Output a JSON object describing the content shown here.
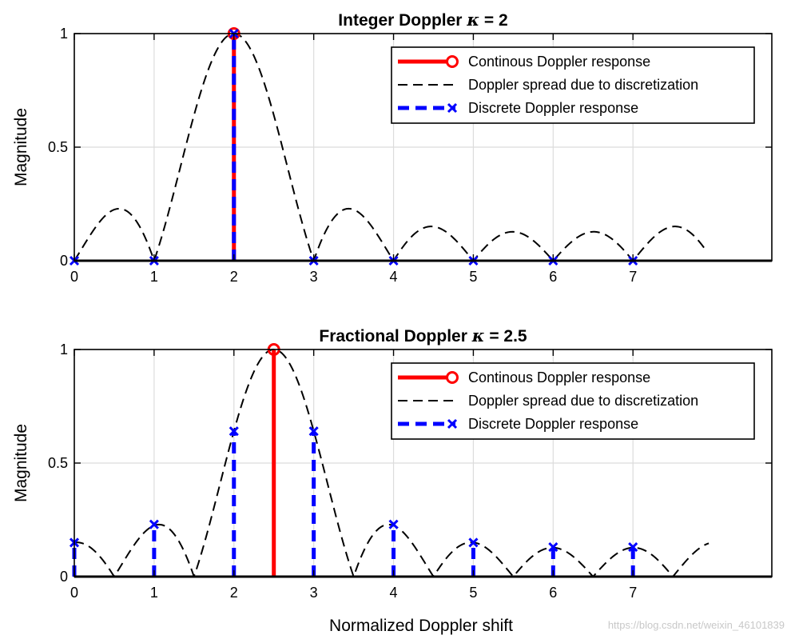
{
  "figure": {
    "xlabel": "Normalized Doppler shift",
    "watermark": "https://blog.csdn.net/weixin_46101839"
  },
  "colors": {
    "continuous": "#ff0000",
    "spread": "#000000",
    "discrete": "#0000ff",
    "grid": "#dcdcdc"
  },
  "chart_data": [
    {
      "type": "line",
      "title": "Integer Doppler κ = 2",
      "title_prefix": "Integer Doppler ",
      "title_symbol": "κ",
      "title_suffix": " = 2",
      "ylabel": "Magnitude",
      "xlim": [
        0,
        8.74
      ],
      "ylim": [
        0,
        1
      ],
      "x_ticks": [
        "0",
        "1",
        "2",
        "3",
        "4",
        "5",
        "6",
        "7"
      ],
      "y_ticks": [
        "0",
        "0.5",
        "1"
      ],
      "grid": true,
      "legend_position": "top-right",
      "kappa": 2,
      "N": 8,
      "spread_x_range": [
        0,
        7.9
      ],
      "legend": [
        {
          "label": "Continous Doppler response",
          "style": "solid-red-circle"
        },
        {
          "label": "Doppler spread due to discretization",
          "style": "dashed-black"
        },
        {
          "label": "Discrete Doppler response",
          "style": "dashed-blue-x"
        }
      ],
      "continuous": {
        "x": 2,
        "y": 1
      },
      "discrete": {
        "x": [
          0,
          1,
          2,
          3,
          4,
          5,
          6,
          7
        ],
        "y": [
          0,
          0,
          1,
          0,
          0,
          0,
          0,
          0
        ]
      }
    },
    {
      "type": "line",
      "title": "Fractional Doppler κ = 2.5",
      "title_prefix": "Fractional Doppler ",
      "title_symbol": "κ",
      "title_suffix": " = 2.5",
      "ylabel": "Magnitude",
      "xlim": [
        0,
        8.74
      ],
      "ylim": [
        0,
        1
      ],
      "x_ticks": [
        "0",
        "1",
        "2",
        "3",
        "4",
        "5",
        "6",
        "7"
      ],
      "y_ticks": [
        "0",
        "0.5",
        "1"
      ],
      "grid": true,
      "legend_position": "top-right",
      "kappa": 2.5,
      "N": 8,
      "spread_x_range": [
        0,
        7.95
      ],
      "legend": [
        {
          "label": "Continous Doppler response",
          "style": "solid-red-circle"
        },
        {
          "label": "Doppler spread due to discretization",
          "style": "dashed-black"
        },
        {
          "label": "Discrete Doppler response",
          "style": "dashed-blue-x"
        }
      ],
      "continuous": {
        "x": 2.5,
        "y": 1
      },
      "discrete": {
        "x": [
          0,
          1,
          2,
          3,
          4,
          5,
          6,
          7
        ],
        "y": [
          0.15,
          0.23,
          0.64,
          0.64,
          0.23,
          0.15,
          0.13,
          0.13
        ]
      }
    }
  ]
}
